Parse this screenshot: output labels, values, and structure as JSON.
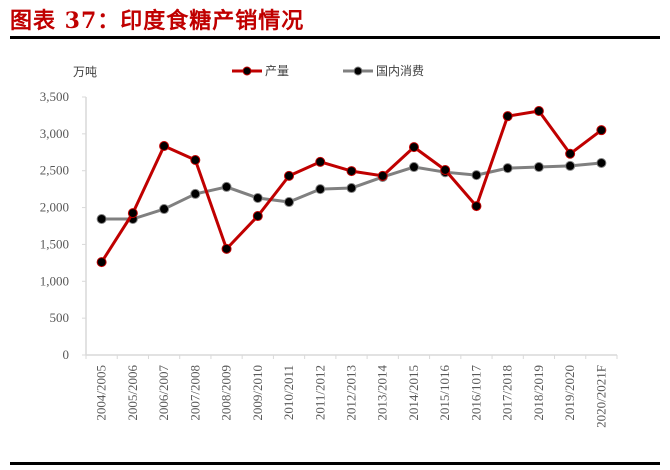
{
  "title": "图表 37：印度食糖产销情况",
  "unit_label": "万吨",
  "legend": [
    {
      "label": "产量",
      "color": "#c00000"
    },
    {
      "label": "国内消费",
      "color": "#808080"
    }
  ],
  "chart_data": {
    "type": "line",
    "title": "图表 37：印度食糖产销情况",
    "xlabel": "",
    "ylabel": "万吨",
    "ylim": [
      0,
      3500
    ],
    "yticks": [
      0,
      500,
      1000,
      1500,
      2000,
      2500,
      3000,
      3500
    ],
    "ytick_labels": [
      "0",
      "500",
      "1,000",
      "1,500",
      "2,000",
      "2,500",
      "3,000",
      "3,500"
    ],
    "grid": false,
    "legend_position": "top",
    "categories": [
      "2004/2005",
      "2005/2006",
      "2006/2007",
      "2007/2008",
      "2008/2009",
      "2009/2010",
      "2010/2011",
      "2011/2012",
      "2012/2013",
      "2013/2014",
      "2014/2015",
      "2015/1016",
      "2016/1017",
      "2017/2018",
      "2018/2019",
      "2019/2020",
      "2020/2021F"
    ],
    "series": [
      {
        "name": "产量",
        "color": "#c00000",
        "values": [
          1260,
          1925,
          2835,
          2645,
          1440,
          1885,
          2430,
          2620,
          2495,
          2430,
          2820,
          2510,
          2020,
          3240,
          3310,
          2730,
          3050
        ]
      },
      {
        "name": "国内消费",
        "color": "#808080",
        "values": [
          1845,
          1845,
          1980,
          2185,
          2280,
          2130,
          2075,
          2250,
          2265,
          2415,
          2550,
          2480,
          2440,
          2535,
          2550,
          2565,
          2605
        ]
      }
    ]
  }
}
